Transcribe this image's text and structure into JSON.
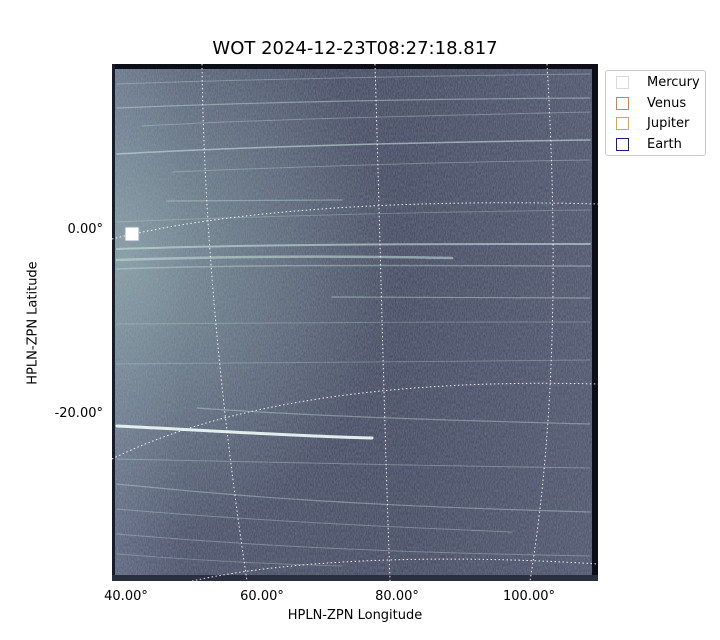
{
  "title": "WOT 2024-12-23T08:27:18.817",
  "axes": {
    "xlabel": "HPLN-ZPN Longitude",
    "ylabel": "HPLN-ZPN Latitude",
    "xticks": [
      "40.00°",
      "60.00°",
      "80.00°",
      "100.00°"
    ],
    "yticks": [
      "0.00°",
      "-20.00°"
    ]
  },
  "legend": {
    "items": [
      {
        "label": "Mercury",
        "color": "#d9d9d9"
      },
      {
        "label": "Venus",
        "color": "#e07b39"
      },
      {
        "label": "Jupiter",
        "color": "#e3a81a"
      },
      {
        "label": "Earth",
        "color": "#1a1a7a"
      }
    ]
  },
  "colors": {
    "background_sky": "#4a5068",
    "streaks": "#c8e0dc",
    "grid": "#ffffff"
  }
}
